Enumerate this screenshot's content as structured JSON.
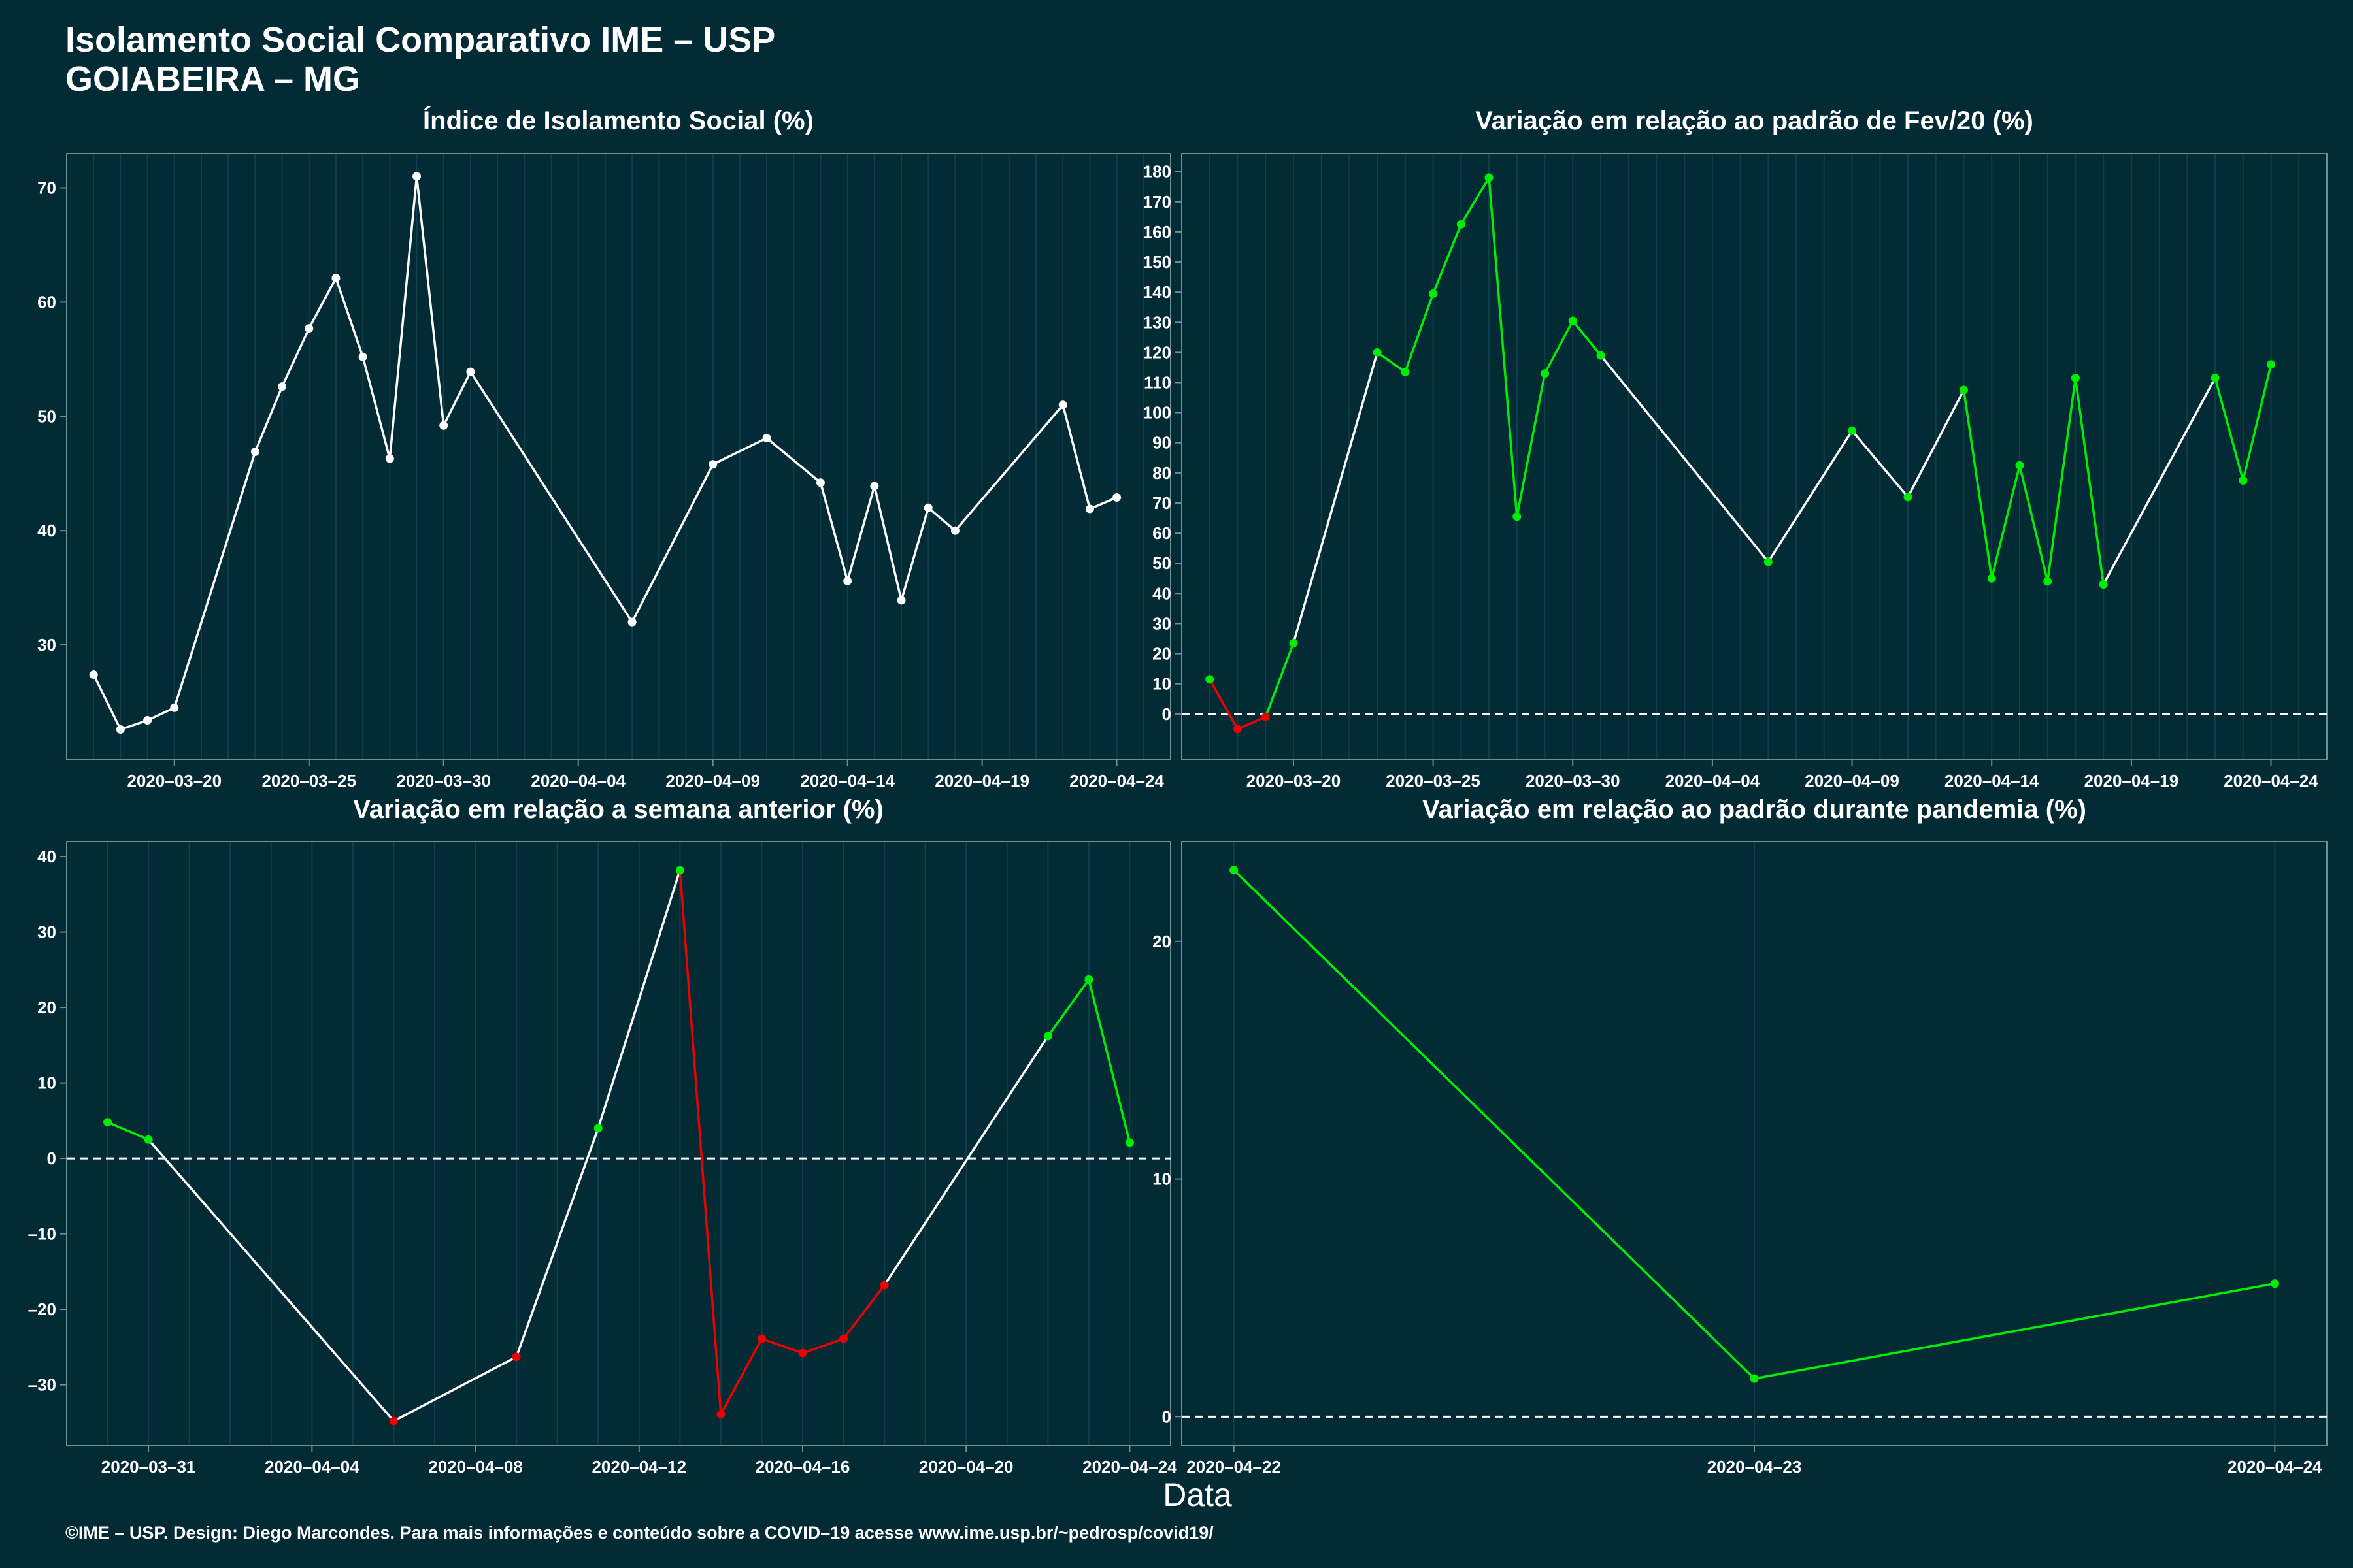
{
  "header": {
    "title": "Isolamento Social Comparativo IME – USP",
    "subtitle": "GOIABEIRA – MG"
  },
  "xlabel": "Data",
  "footer": "©IME – USP. Design: Diego Marcondes. Para mais informações e conteúdo sobre a COVID–19 acesse www.ime.usp.br/~pedrosp/covid19/",
  "colors": {
    "background": "#022b36",
    "line_neutral": "#ffffff",
    "positive": "#00ee00",
    "negative": "#ee0000",
    "grid": "#0e3f4a",
    "axis": "#6f8f96"
  },
  "chart_data": [
    {
      "id": "isolamento",
      "type": "line",
      "title": "Índice de Isolamento Social (%)",
      "xlim": [
        "2020-03-16",
        "2020-04-26"
      ],
      "ylim": [
        20,
        73
      ],
      "x_ticks": [
        "2020-03-20",
        "2020-03-25",
        "2020-03-30",
        "2020-04-04",
        "2020-04-09",
        "2020-04-14",
        "2020-04-19",
        "2020-04-24"
      ],
      "y_ticks": [
        30,
        40,
        50,
        60,
        70
      ],
      "zero_line": false,
      "color_mode": "neutral",
      "points": [
        {
          "x": "2020-03-17",
          "y": 27.4
        },
        {
          "x": "2020-03-18",
          "y": 22.6
        },
        {
          "x": "2020-03-19",
          "y": 23.4
        },
        {
          "x": "2020-03-20",
          "y": 24.5
        },
        {
          "x": "2020-03-23",
          "y": 46.9
        },
        {
          "x": "2020-03-24",
          "y": 52.6
        },
        {
          "x": "2020-03-25",
          "y": 57.7
        },
        {
          "x": "2020-03-26",
          "y": 62.1
        },
        {
          "x": "2020-03-27",
          "y": 55.2
        },
        {
          "x": "2020-03-28",
          "y": 46.3
        },
        {
          "x": "2020-03-29",
          "y": 71.0
        },
        {
          "x": "2020-03-30",
          "y": 49.2
        },
        {
          "x": "2020-03-31",
          "y": 53.9
        },
        {
          "x": "2020-04-06",
          "y": 32.0
        },
        {
          "x": "2020-04-09",
          "y": 45.8
        },
        {
          "x": "2020-04-11",
          "y": 48.1
        },
        {
          "x": "2020-04-13",
          "y": 44.2
        },
        {
          "x": "2020-04-14",
          "y": 35.6
        },
        {
          "x": "2020-04-15",
          "y": 43.9
        },
        {
          "x": "2020-04-16",
          "y": 33.9
        },
        {
          "x": "2020-04-17",
          "y": 42.0
        },
        {
          "x": "2020-04-18",
          "y": 40.0
        },
        {
          "x": "2020-04-22",
          "y": 51.0
        },
        {
          "x": "2020-04-23",
          "y": 41.9
        },
        {
          "x": "2020-04-24",
          "y": 42.9
        }
      ]
    },
    {
      "id": "fev20",
      "type": "line",
      "title": "Variação em relação ao padrão de Fev/20 (%)",
      "xlim": [
        "2020-03-16",
        "2020-04-26"
      ],
      "ylim": [
        -15,
        186
      ],
      "x_ticks": [
        "2020-03-20",
        "2020-03-25",
        "2020-03-30",
        "2020-04-04",
        "2020-04-09",
        "2020-04-14",
        "2020-04-19",
        "2020-04-24"
      ],
      "y_ticks": [
        0,
        10,
        20,
        30,
        40,
        50,
        60,
        70,
        80,
        90,
        100,
        110,
        120,
        130,
        140,
        150,
        160,
        170,
        180
      ],
      "zero_line": true,
      "color_mode": "segment",
      "points": [
        {
          "x": "2020-03-17",
          "y": 11.5,
          "c": "g"
        },
        {
          "x": "2020-03-18",
          "y": -5.0,
          "c": "r"
        },
        {
          "x": "2020-03-19",
          "y": -1.0,
          "c": "r"
        },
        {
          "x": "2020-03-20",
          "y": 23.5,
          "c": "g"
        },
        {
          "x": "2020-03-23",
          "y": 120.0,
          "c": "g"
        },
        {
          "x": "2020-03-24",
          "y": 113.5,
          "c": "g"
        },
        {
          "x": "2020-03-25",
          "y": 139.5,
          "c": "g"
        },
        {
          "x": "2020-03-26",
          "y": 162.5,
          "c": "g"
        },
        {
          "x": "2020-03-27",
          "y": 178.0,
          "c": "g"
        },
        {
          "x": "2020-03-28",
          "y": 65.5,
          "c": "g"
        },
        {
          "x": "2020-03-29",
          "y": 113.0,
          "c": "g"
        },
        {
          "x": "2020-03-30",
          "y": 130.5,
          "c": "g"
        },
        {
          "x": "2020-03-31",
          "y": 119.0,
          "c": "g"
        },
        {
          "x": "2020-04-06",
          "y": 50.5,
          "c": "g"
        },
        {
          "x": "2020-04-09",
          "y": 94.0,
          "c": "g"
        },
        {
          "x": "2020-04-11",
          "y": 72.0,
          "c": "g"
        },
        {
          "x": "2020-04-13",
          "y": 107.5,
          "c": "g"
        },
        {
          "x": "2020-04-14",
          "y": 45.0,
          "c": "g"
        },
        {
          "x": "2020-04-15",
          "y": 82.5,
          "c": "g"
        },
        {
          "x": "2020-04-16",
          "y": 44.0,
          "c": "g"
        },
        {
          "x": "2020-04-17",
          "y": 111.5,
          "c": "g"
        },
        {
          "x": "2020-04-18",
          "y": 43.0,
          "c": "g"
        },
        {
          "x": "2020-04-22",
          "y": 111.5,
          "c": "g"
        },
        {
          "x": "2020-04-23",
          "y": 77.5,
          "c": "g"
        },
        {
          "x": "2020-04-24",
          "y": 116.0,
          "c": "g"
        }
      ]
    },
    {
      "id": "semana",
      "type": "line",
      "title": "Variação em relação a semana anterior (%)",
      "xlim": [
        "2020-03-29",
        "2020-04-25"
      ],
      "ylim": [
        -38,
        42
      ],
      "x_ticks": [
        "2020-03-31",
        "2020-04-04",
        "2020-04-08",
        "2020-04-12",
        "2020-04-16",
        "2020-04-20",
        "2020-04-24"
      ],
      "y_ticks": [
        -30,
        -20,
        -10,
        0,
        10,
        20,
        30,
        40
      ],
      "zero_line": true,
      "color_mode": "segment",
      "points": [
        {
          "x": "2020-03-30",
          "y": 4.8,
          "c": "g"
        },
        {
          "x": "2020-03-31",
          "y": 2.5,
          "c": "g"
        },
        {
          "x": "2020-04-06",
          "y": -34.8,
          "c": "r"
        },
        {
          "x": "2020-04-09",
          "y": -26.3,
          "c": "r"
        },
        {
          "x": "2020-04-11",
          "y": 4.0,
          "c": "g"
        },
        {
          "x": "2020-04-13",
          "y": 38.2,
          "c": "g"
        },
        {
          "x": "2020-04-14",
          "y": -33.9,
          "c": "r"
        },
        {
          "x": "2020-04-15",
          "y": -23.9,
          "c": "r"
        },
        {
          "x": "2020-04-16",
          "y": -25.8,
          "c": "r"
        },
        {
          "x": "2020-04-17",
          "y": -23.9,
          "c": "r"
        },
        {
          "x": "2020-04-18",
          "y": -16.8,
          "c": "r"
        },
        {
          "x": "2020-04-22",
          "y": 16.2,
          "c": "g"
        },
        {
          "x": "2020-04-23",
          "y": 23.7,
          "c": "g"
        },
        {
          "x": "2020-04-24",
          "y": 2.1,
          "c": "g"
        }
      ]
    },
    {
      "id": "pandemia",
      "type": "line",
      "title": "Variação em relação ao padrão durante pandemia (%)",
      "xlim": [
        "2020-04-22",
        "2020-04-24"
      ],
      "x_pad": 0.1,
      "ylim": [
        -1.2,
        24.2
      ],
      "x_ticks": [
        "2020-04-22",
        "2020-04-23",
        "2020-04-24"
      ],
      "y_ticks": [
        0,
        10,
        20
      ],
      "zero_line": true,
      "color_mode": "segment",
      "points": [
        {
          "x": "2020-04-22",
          "y": 23.0,
          "c": "g"
        },
        {
          "x": "2020-04-23",
          "y": 1.6,
          "c": "g"
        },
        {
          "x": "2020-04-24",
          "y": 5.6,
          "c": "g"
        }
      ]
    }
  ]
}
